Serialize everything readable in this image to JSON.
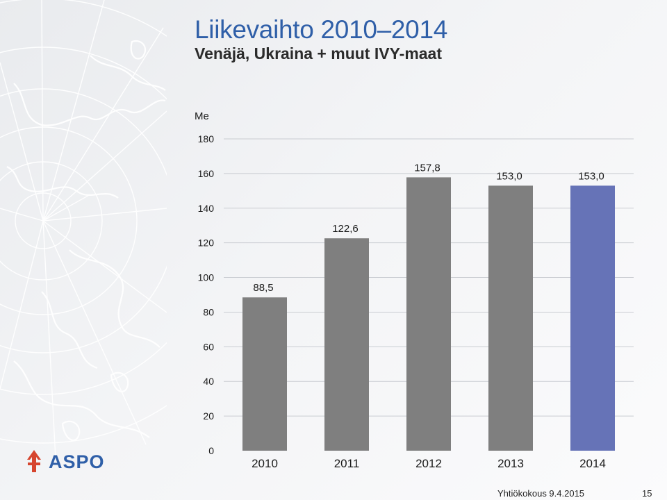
{
  "slide": {
    "title": "Liikevaihto 2010–2014",
    "subtitle": "Venäjä, Ukraina + muut IVY-maat",
    "logo_text": "ASPO",
    "footer": "Yhtiökokous 9.4.2015",
    "page_number": "15"
  },
  "chart_data": {
    "type": "bar",
    "ylabel": "Me",
    "categories": [
      "2010",
      "2011",
      "2012",
      "2013",
      "2014"
    ],
    "values": [
      88.5,
      122.6,
      157.8,
      153.0,
      153.0
    ],
    "data_labels": [
      "88,5",
      "122,6",
      "157,8",
      "153,0",
      "153,0"
    ],
    "ylim": [
      0,
      180
    ],
    "yticks": [
      0,
      20,
      40,
      60,
      80,
      100,
      120,
      140,
      160,
      180
    ],
    "grid": true,
    "colors": {
      "default_bar": "#7f7f7f",
      "highlight_bar": "#6673b7",
      "grid": "#c9ccd1",
      "text": "#1a1a1a"
    },
    "highlight_index": 4
  }
}
